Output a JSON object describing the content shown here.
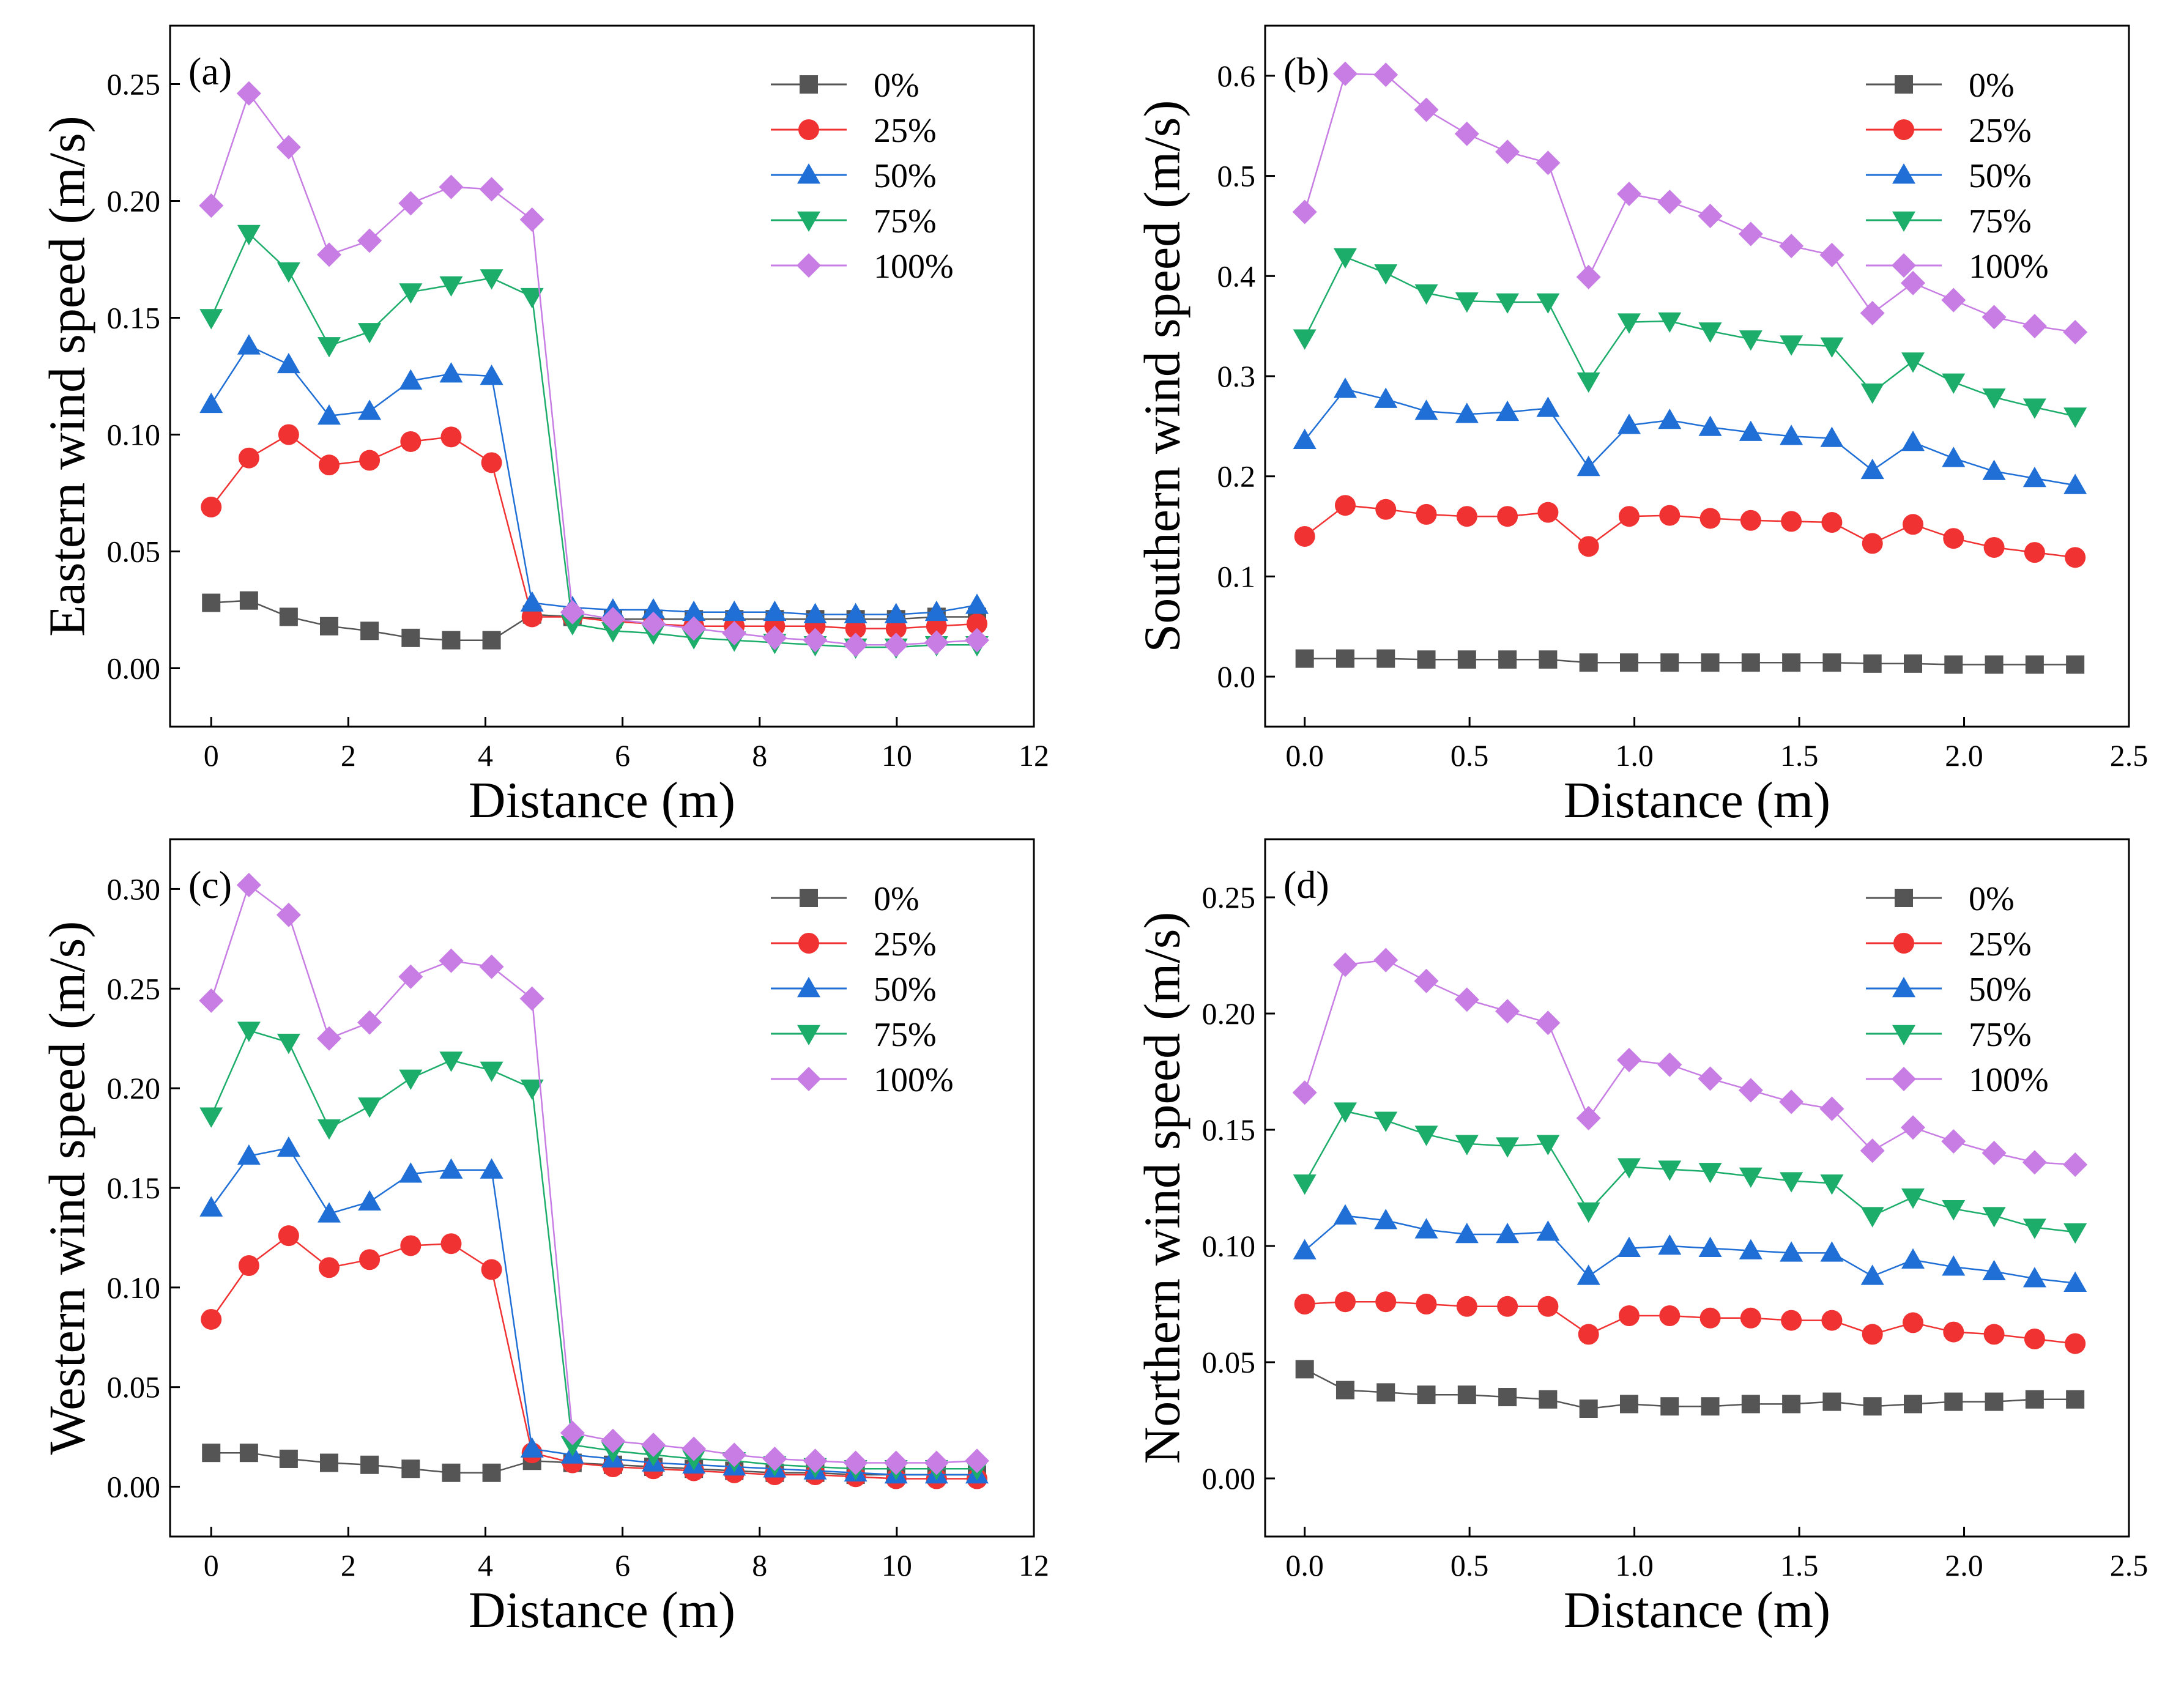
{
  "figure": {
    "type": "multi-panel line chart",
    "panels": 4
  },
  "chart_data": [
    {
      "type": "line",
      "panel_label": "(a)",
      "title": "",
      "xlabel": "Distance (m)",
      "ylabel": "Eastern wind speed (m/s)",
      "xlim": [
        -0.6,
        12
      ],
      "ylim": [
        -0.025,
        0.275
      ],
      "xticks": [
        0,
        2,
        4,
        6,
        8,
        10,
        12
      ],
      "xtick_labels": [
        "0",
        "2",
        "4",
        "6",
        "8",
        "10",
        "12"
      ],
      "yticks": [
        0,
        0.05,
        0.1,
        0.15,
        0.2,
        0.25
      ],
      "ytick_labels": [
        "0.00",
        "0.05",
        "0.10",
        "0.15",
        "0.20",
        "0.25"
      ],
      "legend_position": "top-right",
      "x": [
        0,
        0.55,
        1.13,
        1.72,
        2.31,
        2.91,
        3.5,
        4.09,
        4.68,
        5.27,
        5.86,
        6.45,
        7.04,
        7.63,
        8.22,
        8.81,
        9.4,
        9.99,
        10.58,
        11.17
      ],
      "series": [
        {
          "name": "0%",
          "values": [
            0.028,
            0.029,
            0.022,
            0.018,
            0.016,
            0.013,
            0.012,
            0.012,
            0.023,
            0.022,
            0.021,
            0.021,
            0.021,
            0.021,
            0.021,
            0.021,
            0.021,
            0.021,
            0.022,
            0.022
          ]
        },
        {
          "name": "25%",
          "values": [
            0.069,
            0.09,
            0.1,
            0.087,
            0.089,
            0.097,
            0.099,
            0.088,
            0.022,
            0.022,
            0.02,
            0.019,
            0.018,
            0.018,
            0.018,
            0.018,
            0.017,
            0.017,
            0.018,
            0.019
          ]
        },
        {
          "name": "50%",
          "values": [
            0.113,
            0.138,
            0.13,
            0.108,
            0.11,
            0.123,
            0.126,
            0.125,
            0.028,
            0.026,
            0.025,
            0.025,
            0.024,
            0.024,
            0.024,
            0.023,
            0.023,
            0.023,
            0.024,
            0.027
          ]
        },
        {
          "name": "75%",
          "values": [
            0.15,
            0.186,
            0.17,
            0.138,
            0.144,
            0.161,
            0.164,
            0.167,
            0.159,
            0.019,
            0.016,
            0.015,
            0.013,
            0.012,
            0.011,
            0.01,
            0.009,
            0.009,
            0.01,
            0.01
          ]
        },
        {
          "name": "100%",
          "values": [
            0.198,
            0.246,
            0.223,
            0.177,
            0.183,
            0.199,
            0.206,
            0.205,
            0.192,
            0.024,
            0.021,
            0.019,
            0.017,
            0.015,
            0.013,
            0.012,
            0.01,
            0.01,
            0.011,
            0.012
          ]
        }
      ]
    },
    {
      "type": "line",
      "panel_label": "(b)",
      "title": "",
      "xlabel": "Distance (m)",
      "ylabel": "Southern wind speed (m/s)",
      "xlim": [
        -0.12,
        2.5
      ],
      "ylim": [
        -0.05,
        0.65
      ],
      "xticks": [
        0,
        0.5,
        1,
        1.5,
        2,
        2.5
      ],
      "xtick_labels": [
        "0.0",
        "0.5",
        "1.0",
        "1.5",
        "2.0",
        "2.5"
      ],
      "yticks": [
        0,
        0.1,
        0.2,
        0.3,
        0.4,
        0.5,
        0.6
      ],
      "ytick_labels": [
        "0.0",
        "0.1",
        "0.2",
        "0.3",
        "0.4",
        "0.5",
        "0.6"
      ],
      "legend_position": "top-right",
      "x": [
        0,
        0.123,
        0.246,
        0.369,
        0.492,
        0.615,
        0.738,
        0.861,
        0.984,
        1.107,
        1.23,
        1.353,
        1.476,
        1.599,
        1.722,
        1.845,
        1.968,
        2.091,
        2.214,
        2.337
      ],
      "series": [
        {
          "name": "0%",
          "values": [
            0.018,
            0.018,
            0.018,
            0.017,
            0.017,
            0.017,
            0.017,
            0.014,
            0.014,
            0.014,
            0.014,
            0.014,
            0.014,
            0.014,
            0.013,
            0.013,
            0.012,
            0.012,
            0.012,
            0.012
          ]
        },
        {
          "name": "25%",
          "values": [
            0.14,
            0.171,
            0.167,
            0.162,
            0.16,
            0.16,
            0.164,
            0.13,
            0.16,
            0.161,
            0.158,
            0.156,
            0.155,
            0.154,
            0.133,
            0.152,
            0.138,
            0.129,
            0.124,
            0.119
          ]
        },
        {
          "name": "50%",
          "values": [
            0.236,
            0.287,
            0.277,
            0.265,
            0.262,
            0.264,
            0.268,
            0.209,
            0.251,
            0.256,
            0.249,
            0.244,
            0.24,
            0.238,
            0.206,
            0.234,
            0.218,
            0.205,
            0.198,
            0.191
          ]
        },
        {
          "name": "75%",
          "values": [
            0.338,
            0.419,
            0.403,
            0.383,
            0.375,
            0.374,
            0.374,
            0.295,
            0.354,
            0.355,
            0.345,
            0.337,
            0.332,
            0.33,
            0.284,
            0.315,
            0.294,
            0.279,
            0.269,
            0.26
          ]
        },
        {
          "name": "100%",
          "values": [
            0.464,
            0.602,
            0.601,
            0.566,
            0.542,
            0.524,
            0.513,
            0.399,
            0.482,
            0.474,
            0.46,
            0.442,
            0.43,
            0.421,
            0.363,
            0.393,
            0.376,
            0.359,
            0.35,
            0.344
          ]
        }
      ]
    },
    {
      "type": "line",
      "panel_label": "(c)",
      "title": "",
      "xlabel": "Distance (m)",
      "ylabel": "Western wind speed (m/s)",
      "xlim": [
        -0.6,
        12
      ],
      "ylim": [
        -0.025,
        0.325
      ],
      "xticks": [
        0,
        2,
        4,
        6,
        8,
        10,
        12
      ],
      "xtick_labels": [
        "0",
        "2",
        "4",
        "6",
        "8",
        "10",
        "12"
      ],
      "yticks": [
        0,
        0.05,
        0.1,
        0.15,
        0.2,
        0.25,
        0.3
      ],
      "ytick_labels": [
        "0.00",
        "0.05",
        "0.10",
        "0.15",
        "0.20",
        "0.25",
        "0.30"
      ],
      "legend_position": "top-right",
      "x": [
        0,
        0.55,
        1.13,
        1.72,
        2.31,
        2.91,
        3.5,
        4.09,
        4.68,
        5.27,
        5.86,
        6.45,
        7.04,
        7.63,
        8.22,
        8.81,
        9.4,
        9.99,
        10.58,
        11.17
      ],
      "series": [
        {
          "name": "0%",
          "values": [
            0.017,
            0.017,
            0.014,
            0.012,
            0.011,
            0.009,
            0.007,
            0.007,
            0.013,
            0.012,
            0.011,
            0.01,
            0.009,
            0.008,
            0.007,
            0.007,
            0.006,
            0.006,
            0.006,
            0.006
          ]
        },
        {
          "name": "25%",
          "values": [
            0.084,
            0.111,
            0.126,
            0.11,
            0.114,
            0.121,
            0.122,
            0.109,
            0.017,
            0.012,
            0.01,
            0.009,
            0.008,
            0.007,
            0.006,
            0.006,
            0.005,
            0.004,
            0.004,
            0.004
          ]
        },
        {
          "name": "50%",
          "values": [
            0.14,
            0.166,
            0.17,
            0.137,
            0.143,
            0.157,
            0.159,
            0.159,
            0.019,
            0.016,
            0.014,
            0.012,
            0.011,
            0.01,
            0.009,
            0.008,
            0.007,
            0.006,
            0.006,
            0.006
          ]
        },
        {
          "name": "75%",
          "values": [
            0.186,
            0.229,
            0.223,
            0.18,
            0.191,
            0.205,
            0.214,
            0.209,
            0.2,
            0.021,
            0.018,
            0.016,
            0.014,
            0.013,
            0.011,
            0.01,
            0.009,
            0.009,
            0.009,
            0.009
          ]
        },
        {
          "name": "100%",
          "values": [
            0.244,
            0.302,
            0.287,
            0.225,
            0.233,
            0.256,
            0.264,
            0.261,
            0.245,
            0.027,
            0.023,
            0.021,
            0.019,
            0.016,
            0.014,
            0.013,
            0.012,
            0.012,
            0.012,
            0.013
          ]
        }
      ]
    },
    {
      "type": "line",
      "panel_label": "(d)",
      "title": "",
      "xlabel": "Distance (m)",
      "ylabel": "Northern wind speed (m/s)",
      "xlim": [
        -0.12,
        2.5
      ],
      "ylim": [
        -0.025,
        0.275
      ],
      "xticks": [
        0,
        0.5,
        1,
        1.5,
        2,
        2.5
      ],
      "xtick_labels": [
        "0.0",
        "0.5",
        "1.0",
        "1.5",
        "2.0",
        "2.5"
      ],
      "yticks": [
        0,
        0.05,
        0.1,
        0.15,
        0.2,
        0.25
      ],
      "ytick_labels": [
        "0.00",
        "0.05",
        "0.10",
        "0.15",
        "0.20",
        "0.25"
      ],
      "legend_position": "top-right",
      "x": [
        0,
        0.123,
        0.246,
        0.369,
        0.492,
        0.615,
        0.738,
        0.861,
        0.984,
        1.107,
        1.23,
        1.353,
        1.476,
        1.599,
        1.722,
        1.845,
        1.968,
        2.091,
        2.214,
        2.337
      ],
      "series": [
        {
          "name": "0%",
          "values": [
            0.047,
            0.038,
            0.037,
            0.036,
            0.036,
            0.035,
            0.034,
            0.03,
            0.032,
            0.031,
            0.031,
            0.032,
            0.032,
            0.033,
            0.031,
            0.032,
            0.033,
            0.033,
            0.034,
            0.034
          ]
        },
        {
          "name": "25%",
          "values": [
            0.075,
            0.076,
            0.076,
            0.075,
            0.074,
            0.074,
            0.074,
            0.062,
            0.07,
            0.07,
            0.069,
            0.069,
            0.068,
            0.068,
            0.062,
            0.067,
            0.063,
            0.062,
            0.06,
            0.058
          ]
        },
        {
          "name": "50%",
          "values": [
            0.098,
            0.113,
            0.111,
            0.107,
            0.105,
            0.105,
            0.106,
            0.087,
            0.099,
            0.1,
            0.099,
            0.098,
            0.097,
            0.097,
            0.087,
            0.094,
            0.091,
            0.089,
            0.086,
            0.084
          ]
        },
        {
          "name": "75%",
          "values": [
            0.127,
            0.158,
            0.154,
            0.148,
            0.144,
            0.143,
            0.144,
            0.115,
            0.134,
            0.133,
            0.132,
            0.13,
            0.128,
            0.127,
            0.113,
            0.121,
            0.116,
            0.113,
            0.108,
            0.106
          ]
        },
        {
          "name": "100%",
          "values": [
            0.166,
            0.221,
            0.223,
            0.214,
            0.206,
            0.201,
            0.196,
            0.155,
            0.18,
            0.178,
            0.172,
            0.167,
            0.162,
            0.159,
            0.141,
            0.151,
            0.145,
            0.14,
            0.136,
            0.135
          ]
        }
      ]
    }
  ],
  "series_style": [
    {
      "name": "0%",
      "color": "#555555",
      "marker": "square"
    },
    {
      "name": "25%",
      "color": "#f13232",
      "marker": "circle"
    },
    {
      "name": "50%",
      "color": "#1f6fd6",
      "marker": "triangle-up"
    },
    {
      "name": "75%",
      "color": "#1dad6b",
      "marker": "triangle-down"
    },
    {
      "name": "100%",
      "color": "#c77de4",
      "marker": "diamond"
    }
  ]
}
